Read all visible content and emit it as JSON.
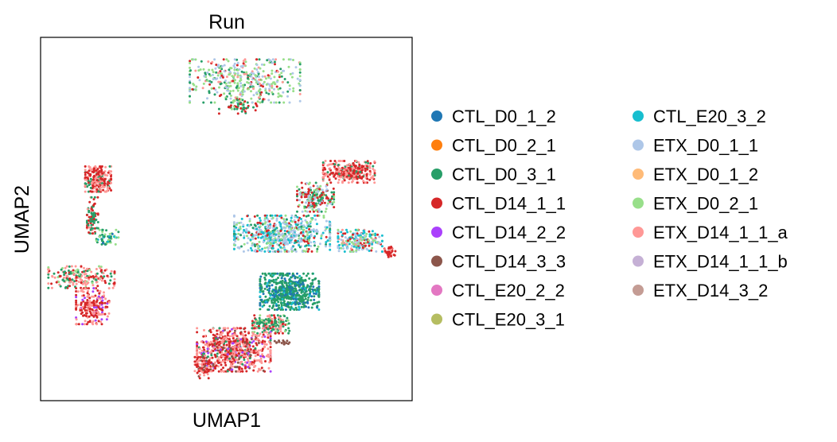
{
  "chart_data": {
    "type": "scatter",
    "title": "Run",
    "xlabel": "UMAP1",
    "ylabel": "UMAP2",
    "xlim": [
      0,
      100
    ],
    "ylim": [
      0,
      100
    ],
    "ticks": "none",
    "grid": false,
    "legend_position": "right",
    "series": [
      {
        "name": "CTL_D0_1_2",
        "color": "#1f77b4"
      },
      {
        "name": "CTL_D0_2_1",
        "color": "#ff7f0e"
      },
      {
        "name": "CTL_D0_3_1",
        "color": "#279e68"
      },
      {
        "name": "CTL_D14_1_1",
        "color": "#d62728"
      },
      {
        "name": "CTL_D14_2_2",
        "color": "#aa40fc"
      },
      {
        "name": "CTL_D14_3_3",
        "color": "#8c564b"
      },
      {
        "name": "CTL_E20_2_2",
        "color": "#e377c2"
      },
      {
        "name": "CTL_E20_3_1",
        "color": "#b5bd61"
      },
      {
        "name": "CTL_E20_3_2",
        "color": "#17becf"
      },
      {
        "name": "ETX_D0_1_1",
        "color": "#aec7e8"
      },
      {
        "name": "ETX_D0_1_2",
        "color": "#ffbb78"
      },
      {
        "name": "ETX_D0_2_1",
        "color": "#98df8a"
      },
      {
        "name": "ETX_D14_1_1_a",
        "color": "#ff9896"
      },
      {
        "name": "ETX_D14_1_1_b",
        "color": "#c5b0d5"
      },
      {
        "name": "ETX_D14_3_2",
        "color": "#c49c94"
      }
    ],
    "clusters": [
      {
        "cx": 55,
        "cy": 88,
        "rx": 15,
        "ry": 6,
        "n": 420,
        "mix": [
          [
            11,
            4
          ],
          [
            9,
            3
          ],
          [
            2,
            2
          ],
          [
            3,
            1
          ],
          [
            12,
            1
          ]
        ]
      },
      {
        "cx": 54,
        "cy": 81,
        "rx": 6,
        "ry": 2,
        "n": 60,
        "mix": [
          [
            2,
            2
          ],
          [
            3,
            2
          ],
          [
            11,
            1
          ]
        ]
      },
      {
        "cx": 15.5,
        "cy": 61,
        "rx": 3.5,
        "ry": 3.5,
        "n": 260,
        "mix": [
          [
            12,
            4
          ],
          [
            3,
            4
          ],
          [
            2,
            1
          ]
        ]
      },
      {
        "cx": 14,
        "cy": 51,
        "rx": 1.5,
        "ry": 5,
        "n": 90,
        "mix": [
          [
            2,
            3
          ],
          [
            3,
            2
          ],
          [
            12,
            1
          ]
        ]
      },
      {
        "cx": 18,
        "cy": 45,
        "rx": 3,
        "ry": 2,
        "n": 60,
        "mix": [
          [
            2,
            2
          ],
          [
            11,
            2
          ],
          [
            0,
            1
          ],
          [
            8,
            1
          ]
        ]
      },
      {
        "cx": 11,
        "cy": 34,
        "rx": 9,
        "ry": 3,
        "n": 200,
        "mix": [
          [
            12,
            3
          ],
          [
            2,
            2
          ],
          [
            3,
            2
          ],
          [
            11,
            1
          ]
        ]
      },
      {
        "cx": 14,
        "cy": 26,
        "rx": 4.5,
        "ry": 5,
        "n": 220,
        "mix": [
          [
            3,
            4
          ],
          [
            12,
            3
          ],
          [
            4,
            1
          ]
        ]
      },
      {
        "cx": 83,
        "cy": 63,
        "rx": 7,
        "ry": 3,
        "n": 320,
        "mix": [
          [
            12,
            4
          ],
          [
            3,
            4
          ],
          [
            2,
            1
          ]
        ]
      },
      {
        "cx": 74,
        "cy": 56,
        "rx": 5,
        "ry": 4,
        "n": 200,
        "mix": [
          [
            3,
            3
          ],
          [
            2,
            2
          ],
          [
            9,
            2
          ],
          [
            11,
            2
          ]
        ]
      },
      {
        "cx": 65,
        "cy": 46,
        "rx": 13,
        "ry": 5,
        "n": 650,
        "mix": [
          [
            9,
            4
          ],
          [
            8,
            3
          ],
          [
            11,
            2
          ],
          [
            2,
            1
          ],
          [
            3,
            1
          ]
        ]
      },
      {
        "cx": 86,
        "cy": 44,
        "rx": 6,
        "ry": 3,
        "n": 230,
        "mix": [
          [
            9,
            3
          ],
          [
            11,
            2
          ],
          [
            8,
            2
          ],
          [
            3,
            1
          ],
          [
            12,
            1
          ]
        ]
      },
      {
        "cx": 94,
        "cy": 41,
        "rx": 1.5,
        "ry": 1.5,
        "n": 40,
        "mix": [
          [
            3,
            3
          ],
          [
            12,
            2
          ]
        ]
      },
      {
        "cx": 67,
        "cy": 30,
        "rx": 8,
        "ry": 5,
        "n": 600,
        "mix": [
          [
            2,
            5
          ],
          [
            0,
            2
          ],
          [
            8,
            1
          ]
        ]
      },
      {
        "cx": 62,
        "cy": 21,
        "rx": 5,
        "ry": 2.5,
        "n": 180,
        "mix": [
          [
            2,
            3
          ],
          [
            3,
            1
          ],
          [
            12,
            1
          ],
          [
            11,
            1
          ]
        ]
      },
      {
        "cx": 52,
        "cy": 14,
        "rx": 10,
        "ry": 6,
        "n": 700,
        "mix": [
          [
            3,
            5
          ],
          [
            12,
            5
          ],
          [
            2,
            1
          ],
          [
            4,
            1
          ],
          [
            5,
            1
          ]
        ]
      },
      {
        "cx": 44,
        "cy": 9,
        "rx": 2.5,
        "ry": 3,
        "n": 80,
        "mix": [
          [
            3,
            3
          ],
          [
            12,
            2
          ],
          [
            5,
            1
          ]
        ]
      },
      {
        "cx": 65,
        "cy": 16,
        "rx": 2,
        "ry": 0.6,
        "n": 15,
        "mix": [
          [
            5,
            1
          ]
        ]
      }
    ]
  }
}
